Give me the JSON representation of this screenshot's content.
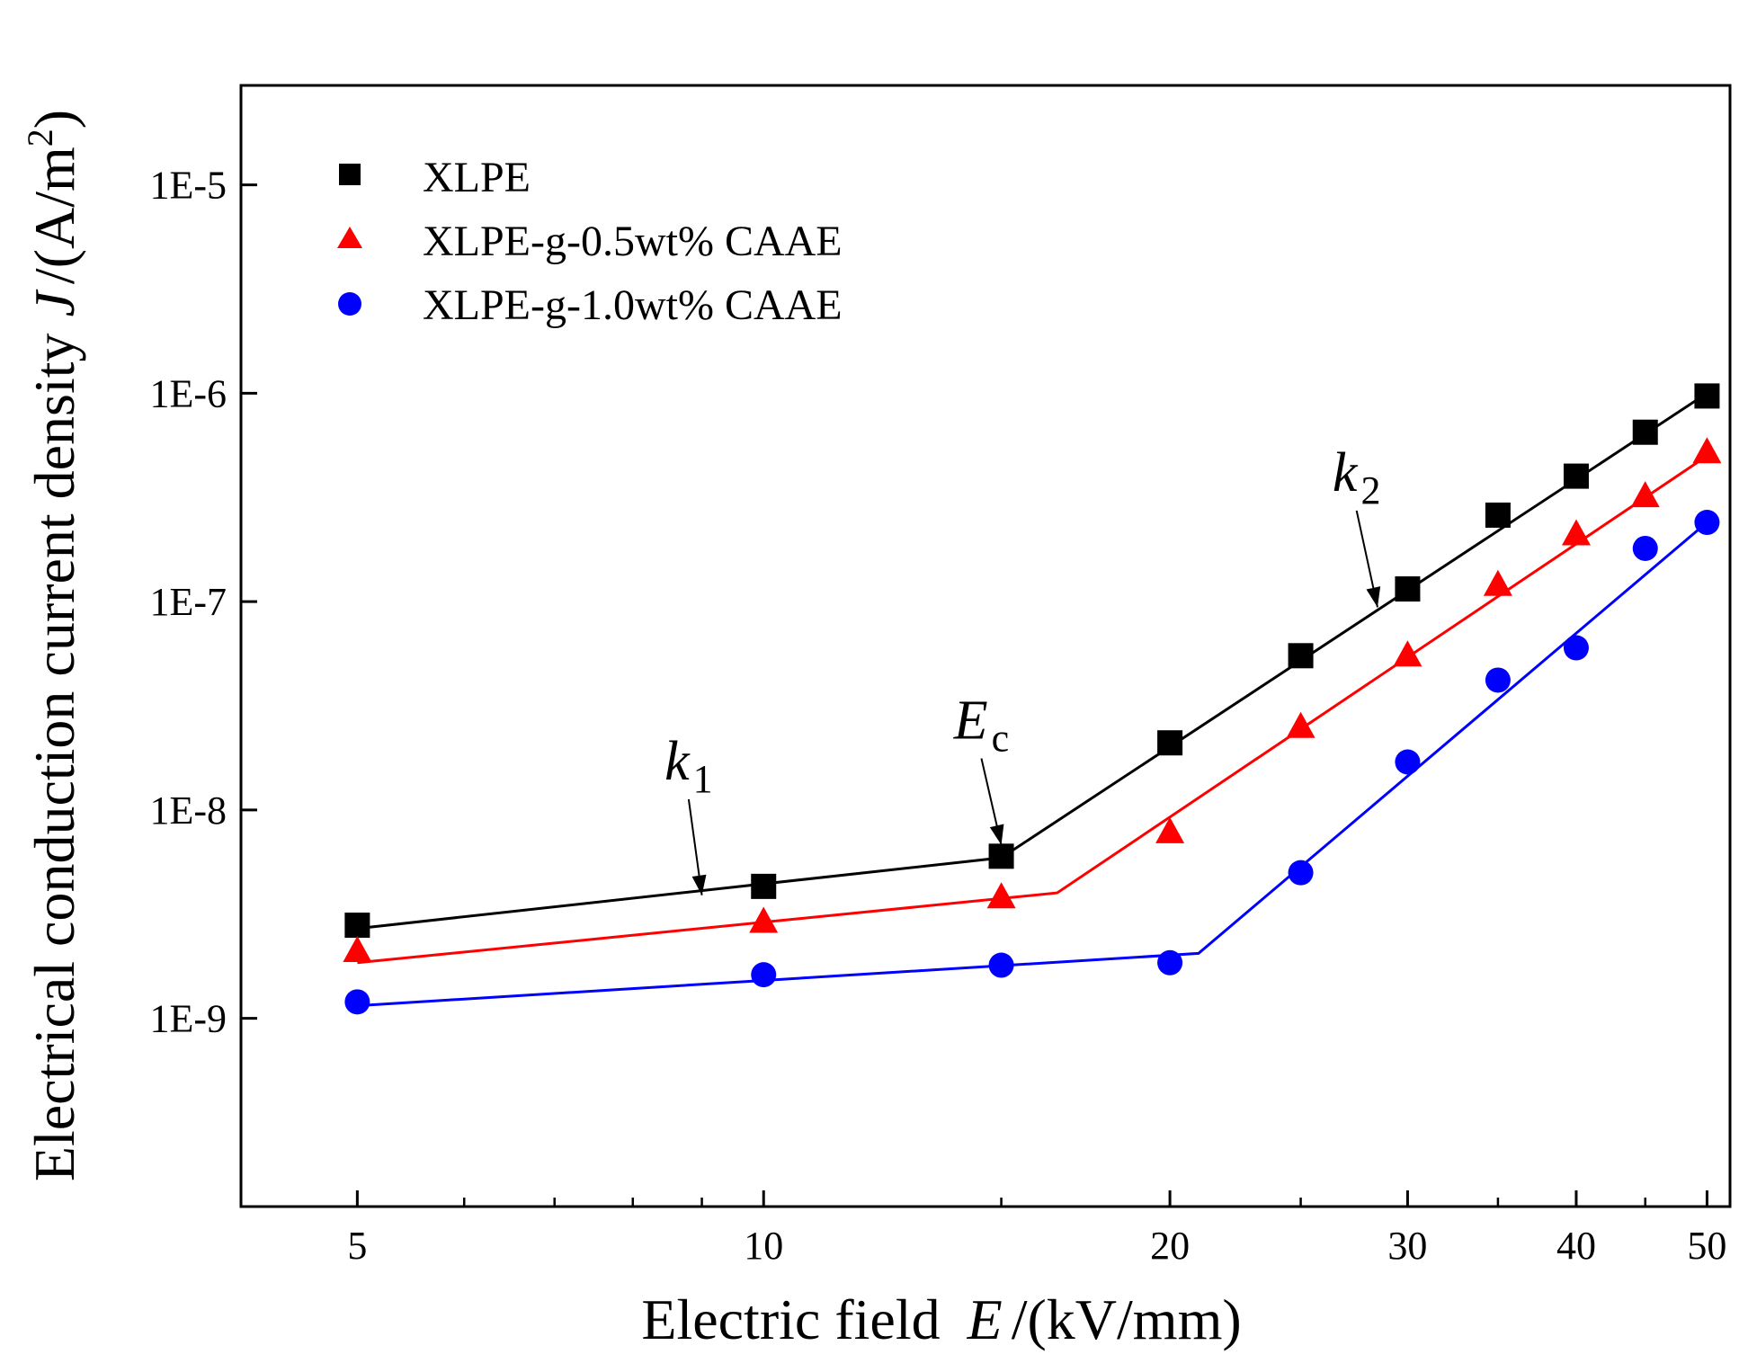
{
  "chart_data": {
    "type": "line",
    "x_scale": "log",
    "y_scale": "log",
    "xlabel": {
      "prefix": "Electric field",
      "symbol": "E",
      "unit": "/(kV/mm)"
    },
    "ylabel": {
      "prefix": "Electrical conduction current density",
      "symbol": "J",
      "unit": "/(A/m",
      "unit_exp": "2",
      "unit_close": ")"
    },
    "xlim": [
      4.1,
      52
    ],
    "ylim": [
      1.25e-10,
      3e-05
    ],
    "x_ticks": [
      5,
      10,
      20,
      30,
      40,
      50
    ],
    "x_tick_labels": [
      "5",
      "10",
      "20",
      "30",
      "40",
      "50"
    ],
    "x_minor_ticks": [
      6,
      7,
      8,
      9,
      15,
      25,
      35,
      45
    ],
    "y_ticks": [
      1e-09,
      1e-08,
      1e-07,
      1e-06,
      1e-05
    ],
    "y_tick_labels": [
      "1E-9",
      "1E-8",
      "1E-7",
      "1E-6",
      "1E-5"
    ],
    "legend_position": "top-left",
    "series": [
      {
        "name": "XLPE",
        "color": "#000000",
        "marker": "square",
        "x": [
          5,
          10,
          15,
          20,
          25,
          30,
          35,
          40,
          45,
          50
        ],
        "y": [
          2.8e-09,
          4.3e-09,
          6e-09,
          2.1e-08,
          5.5e-08,
          1.15e-07,
          2.6e-07,
          4e-07,
          6.5e-07,
          9.7e-07
        ],
        "fit": {
          "x": [
            5,
            15,
            50
          ],
          "y": [
            2.7e-09,
            5.9e-09,
            1e-06
          ]
        }
      },
      {
        "name": "XLPE-g-0.5wt% CAAE",
        "color": "#ff0000",
        "marker": "triangle",
        "x": [
          5,
          10,
          15,
          20,
          25,
          30,
          35,
          40,
          45,
          50
        ],
        "y": [
          2.1e-09,
          2.9e-09,
          3.8e-09,
          7.8e-09,
          2.5e-08,
          5.5e-08,
          1.2e-07,
          2.1e-07,
          3.2e-07,
          5.2e-07
        ],
        "fit": {
          "x": [
            5,
            16.5,
            50
          ],
          "y": [
            1.85e-09,
            4e-09,
            5e-07
          ]
        }
      },
      {
        "name": "XLPE-g-1.0wt% CAAE",
        "color": "#0000ff",
        "marker": "circle",
        "x": [
          5,
          10,
          15,
          20,
          25,
          30,
          35,
          40,
          45,
          50
        ],
        "y": [
          1.2e-09,
          1.62e-09,
          1.8e-09,
          1.85e-09,
          5e-09,
          1.7e-08,
          4.2e-08,
          6e-08,
          1.8e-07,
          2.4e-07
        ],
        "fit": {
          "x": [
            5,
            21,
            50
          ],
          "y": [
            1.15e-09,
            2.05e-09,
            2.4e-07
          ]
        }
      }
    ],
    "annotations": [
      {
        "id": "k1",
        "symbol": "k",
        "sub": "1",
        "label_at": [
          8.8,
          1.4e-08
        ],
        "arrow_to": [
          9.0,
          3.9e-09
        ]
      },
      {
        "id": "Ec",
        "symbol": "E",
        "sub": "c",
        "label_at": [
          14.5,
          2.2e-08
        ],
        "arrow_to": [
          15.0,
          6.8e-09
        ]
      },
      {
        "id": "k2",
        "symbol": "k",
        "sub": "2",
        "label_at": [
          27.5,
          3.4e-07
        ],
        "arrow_to": [
          28.5,
          9.4e-08
        ]
      }
    ]
  }
}
